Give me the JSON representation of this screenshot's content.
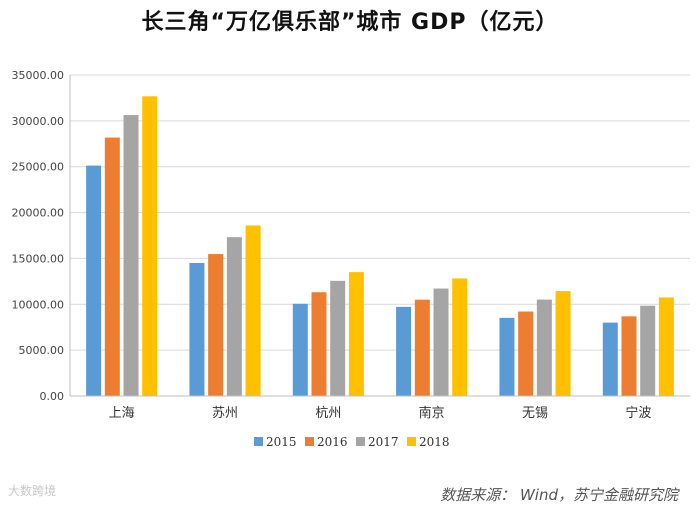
{
  "chart_data": {
    "type": "bar",
    "title": "长三角“万亿俱乐部”城市 GDP（亿元）",
    "categories": [
      "上海",
      "苏州",
      "杭州",
      "南京",
      "无锡",
      "宁波"
    ],
    "series": [
      {
        "name": "2015",
        "color": "#5b9bd5",
        "values": [
          25123,
          14504,
          10054,
          9721,
          8518,
          8003
        ]
      },
      {
        "name": "2016",
        "color": "#ed7d31",
        "values": [
          28179,
          15475,
          11314,
          10503,
          9210,
          8686
        ]
      },
      {
        "name": "2017",
        "color": "#a5a5a5",
        "values": [
          30633,
          17320,
          12556,
          11715,
          10512,
          9842
        ]
      },
      {
        "name": "2018",
        "color": "#ffc000",
        "values": [
          32680,
          18597,
          13509,
          12820,
          11439,
          10746
        ]
      }
    ],
    "ylim": [
      0,
      35000
    ],
    "yticks": [
      "0.00",
      "5000.00",
      "10000.00",
      "15000.00",
      "20000.00",
      "25000.00",
      "30000.00",
      "35000.00"
    ],
    "ytick_values": [
      0,
      5000,
      10000,
      15000,
      20000,
      25000,
      30000,
      35000
    ],
    "xlabel": "",
    "ylabel": "",
    "grid": true,
    "legend_position": "bottom"
  },
  "source_note": "数据来源： Wind，苏宁金融研究院",
  "watermark": "大数跨境"
}
